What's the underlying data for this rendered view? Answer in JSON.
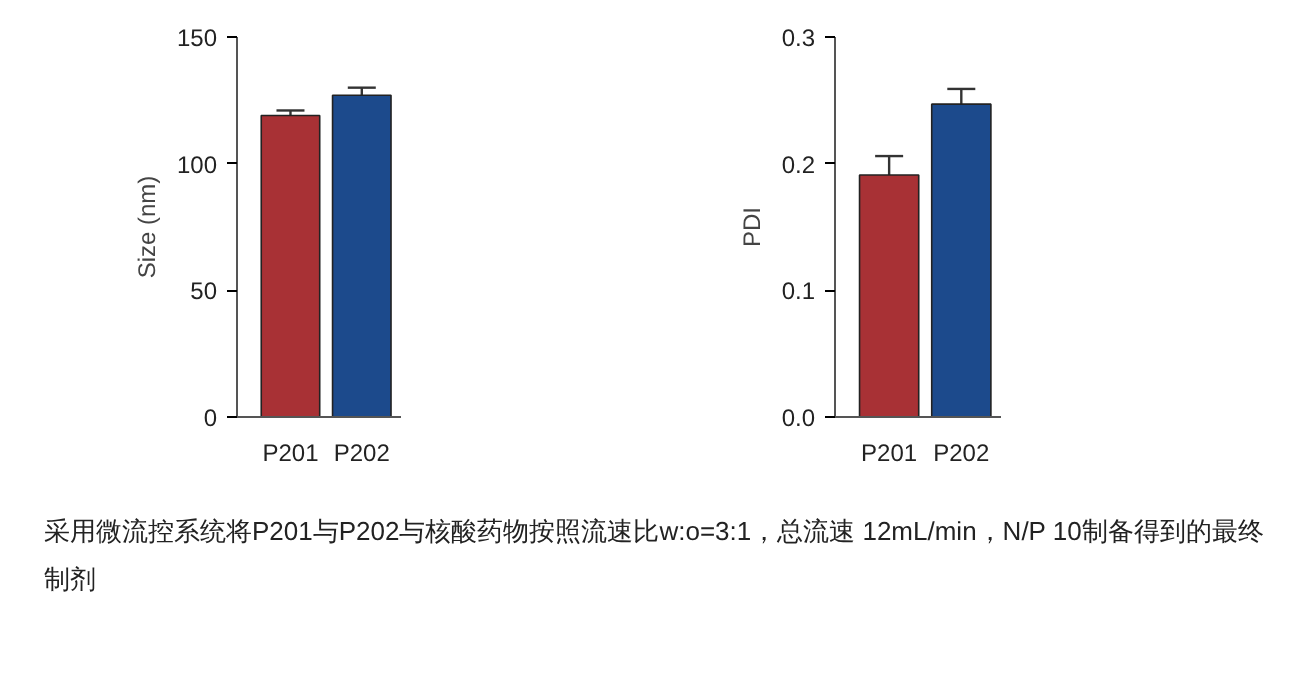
{
  "chart_data": [
    {
      "type": "bar",
      "categories": [
        "P201",
        "P202"
      ],
      "ylabel": "Size (nm)",
      "colors": [
        "#a83135",
        "#1c4a8c"
      ],
      "values": [
        119,
        127
      ],
      "errors": [
        [
          119,
          121
        ],
        [
          127,
          130
        ]
      ],
      "ylim": [
        0,
        150
      ],
      "yticks": [
        0,
        50,
        100,
        150
      ],
      "grid": false,
      "annotations": [
        "采用微流控系统将P201与P202与核酸药物按照流速比w:o=3:1，总流速 12mL/min，N/P 10制备得到的最终制剂"
      ]
    },
    {
      "type": "bar",
      "categories": [
        "P201",
        "P202"
      ],
      "ylabel": "PDI",
      "colors": [
        "#a83135",
        "#1c4a8c"
      ],
      "values": [
        0.191,
        0.247
      ],
      "errors": [
        [
          0.191,
          0.206
        ],
        [
          0.247,
          0.259
        ]
      ],
      "ylim": [
        0.0,
        0.3
      ],
      "yticks": [
        {
          "value": 0.0,
          "label": "0.0"
        },
        0.1,
        0.2,
        0.3
      ],
      "grid": false
    }
  ]
}
